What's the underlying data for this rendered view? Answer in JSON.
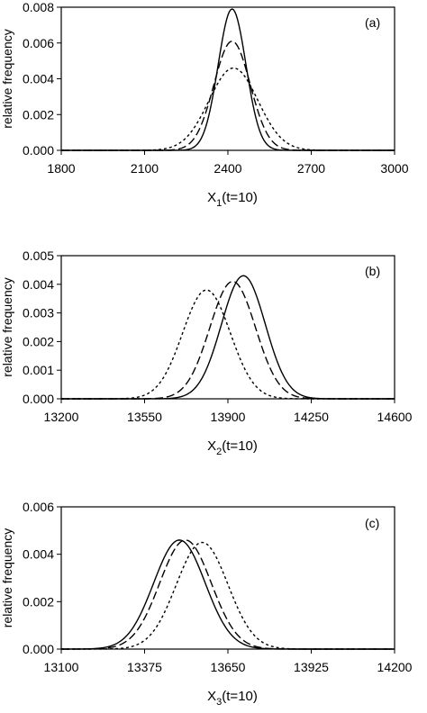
{
  "chart_data": [
    {
      "type": "line",
      "panel_label": "(a)",
      "ylabel": "relative frequency",
      "xlabel_main": "X",
      "xlabel_sub": "1",
      "xlabel_tail": "(t=10)",
      "xlim": [
        1800,
        3000
      ],
      "ylim": [
        0,
        0.008
      ],
      "xticks": [
        "1800",
        "2100",
        "2400",
        "2700",
        "3000"
      ],
      "yticks": [
        "0.000",
        "0.002",
        "0.004",
        "0.006",
        "0.008"
      ],
      "series": [
        {
          "style": "solid",
          "peak_x": 2415,
          "peak_y": 0.0079,
          "sd": 50
        },
        {
          "style": "dashed",
          "peak_x": 2415,
          "peak_y": 0.0061,
          "sd": 65
        },
        {
          "style": "dotted",
          "peak_x": 2420,
          "peak_y": 0.0046,
          "sd": 88
        }
      ]
    },
    {
      "type": "line",
      "panel_label": "(b)",
      "ylabel": "relative frequency",
      "xlabel_main": "X",
      "xlabel_sub": "2",
      "xlabel_tail": "(t=10)",
      "xlim": [
        13200,
        14600
      ],
      "ylim": [
        0,
        0.005
      ],
      "xticks": [
        "13200",
        "13550",
        "13900",
        "14250",
        "14600"
      ],
      "yticks": [
        "0.000",
        "0.001",
        "0.002",
        "0.003",
        "0.004",
        "0.005"
      ],
      "series": [
        {
          "style": "solid",
          "peak_x": 13965,
          "peak_y": 0.0043,
          "sd": 92
        },
        {
          "style": "dashed",
          "peak_x": 13920,
          "peak_y": 0.0041,
          "sd": 96
        },
        {
          "style": "dotted",
          "peak_x": 13810,
          "peak_y": 0.0038,
          "sd": 100
        }
      ]
    },
    {
      "type": "line",
      "panel_label": "(c)",
      "ylabel": "relative frequency",
      "xlabel_main": "X",
      "xlabel_sub": "3",
      "xlabel_tail": "(t=10)",
      "xlim": [
        13100,
        14200
      ],
      "ylim": [
        0,
        0.006
      ],
      "xticks": [
        "13100",
        "13375",
        "13650",
        "13925",
        "14200"
      ],
      "yticks": [
        "0.000",
        "0.002",
        "0.004",
        "0.006"
      ],
      "series": [
        {
          "style": "solid",
          "peak_x": 13490,
          "peak_y": 0.0046,
          "sd": 85
        },
        {
          "style": "dashed",
          "peak_x": 13510,
          "peak_y": 0.0046,
          "sd": 85
        },
        {
          "style": "dotted",
          "peak_x": 13565,
          "peak_y": 0.0045,
          "sd": 85
        }
      ]
    }
  ]
}
